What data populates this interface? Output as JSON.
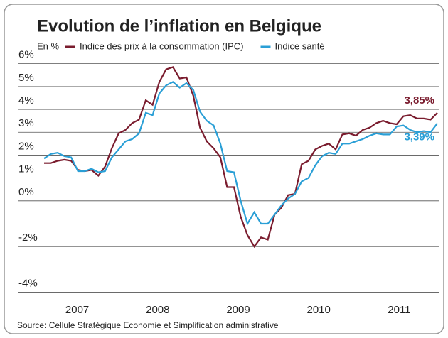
{
  "chart_data": {
    "type": "line",
    "title": "Evolution de l’inflation en Belgique",
    "y_label": "En %",
    "source": "Source: Cellule Stratégique Economie et Simplification administrative",
    "x_labels": [
      "2007",
      "2008",
      "2009",
      "2010",
      "2011"
    ],
    "ylim": [
      -4.2,
      6.3
    ],
    "yticks": [
      {
        "value": 6,
        "label": "6%"
      },
      {
        "value": 5,
        "label": "5%"
      },
      {
        "value": 4,
        "label": "4%"
      },
      {
        "value": 3,
        "label": "3%"
      },
      {
        "value": 2,
        "label": "2%"
      },
      {
        "value": 1,
        "label": "1%"
      },
      {
        "value": 0,
        "label": "0%"
      },
      {
        "value": -2,
        "label": "-2%"
      },
      {
        "value": -4,
        "label": "-4%"
      }
    ],
    "grid": true,
    "series": [
      {
        "name": "Indice des prix à la consommation (IPC)",
        "color": "#7a1c2e",
        "values": [
          1.65,
          1.65,
          1.75,
          1.8,
          1.75,
          1.35,
          1.3,
          1.35,
          1.1,
          1.5,
          2.3,
          2.95,
          3.1,
          3.4,
          3.55,
          4.4,
          4.2,
          5.2,
          5.75,
          5.85,
          5.35,
          5.4,
          4.6,
          3.2,
          2.6,
          2.3,
          1.9,
          0.6,
          0.6,
          -0.7,
          -1.5,
          -2.0,
          -1.6,
          -1.7,
          -0.6,
          -0.3,
          0.25,
          0.3,
          1.6,
          1.75,
          2.25,
          2.4,
          2.5,
          2.25,
          2.9,
          2.95,
          2.85,
          3.1,
          3.2,
          3.4,
          3.5,
          3.4,
          3.35,
          3.7,
          3.75,
          3.6,
          3.6,
          3.55,
          3.85
        ],
        "value_labels": [
          null,
          null,
          null,
          null,
          null,
          null,
          null,
          null,
          null,
          null,
          null,
          null,
          null,
          null,
          null,
          null,
          null,
          null,
          null,
          null,
          null,
          null,
          null,
          null,
          null,
          null,
          null,
          null,
          null,
          null,
          null,
          null,
          null,
          null,
          null,
          null,
          null,
          null,
          null,
          null,
          null,
          null,
          null,
          null,
          null,
          null,
          null,
          null,
          null,
          null,
          null,
          null,
          null,
          null,
          null,
          null,
          null,
          null,
          "3,85%"
        ]
      },
      {
        "name": "Indice santé",
        "color": "#2a9fd6",
        "values": [
          1.85,
          2.05,
          2.1,
          1.95,
          1.9,
          1.3,
          1.3,
          1.4,
          1.25,
          1.3,
          1.9,
          2.25,
          2.6,
          2.7,
          2.95,
          3.85,
          3.75,
          4.7,
          5.05,
          5.2,
          4.95,
          5.15,
          4.85,
          3.9,
          3.5,
          3.3,
          2.5,
          1.3,
          1.25,
          0.0,
          -1.0,
          -0.5,
          -1.0,
          -1.0,
          -0.6,
          -0.2,
          0.1,
          0.3,
          0.85,
          1.0,
          1.55,
          1.95,
          2.1,
          2.05,
          2.5,
          2.5,
          2.6,
          2.7,
          2.85,
          2.95,
          2.9,
          2.9,
          3.25,
          3.3,
          3.1,
          3.0,
          3.05,
          3.0,
          3.39
        ],
        "value_labels": [
          null,
          null,
          null,
          null,
          null,
          null,
          null,
          null,
          null,
          null,
          null,
          null,
          null,
          null,
          null,
          null,
          null,
          null,
          null,
          null,
          null,
          null,
          null,
          null,
          null,
          null,
          null,
          null,
          null,
          null,
          null,
          null,
          null,
          null,
          null,
          null,
          null,
          null,
          null,
          null,
          null,
          null,
          null,
          null,
          null,
          null,
          null,
          null,
          null,
          null,
          null,
          null,
          null,
          null,
          null,
          null,
          null,
          null,
          "3,39%"
        ]
      }
    ]
  }
}
